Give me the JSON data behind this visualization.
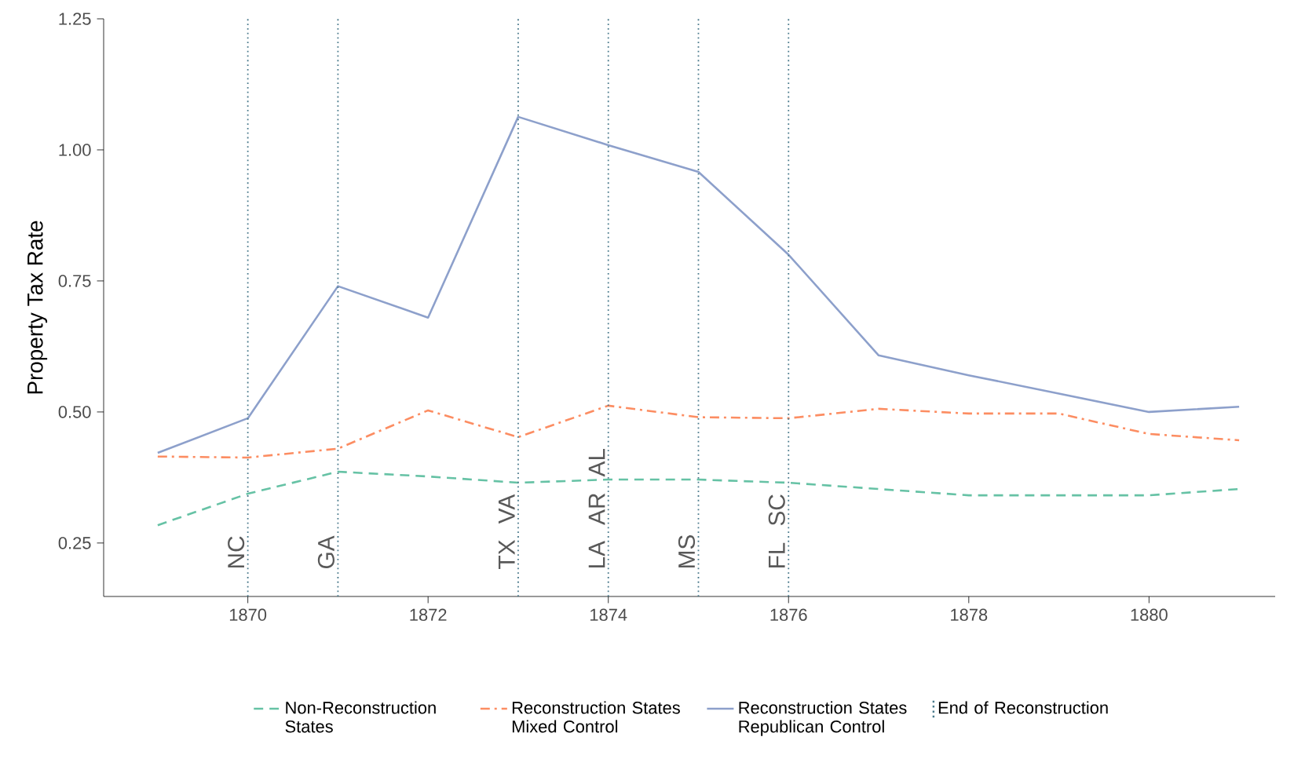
{
  "chart_data": {
    "type": "line",
    "ylabel": "Property Tax Rate",
    "x": [
      1869,
      1870,
      1871,
      1872,
      1873,
      1874,
      1875,
      1876,
      1877,
      1878,
      1879,
      1880,
      1881
    ],
    "series": [
      {
        "name": "Non-Reconstruction States",
        "color": "#66c2a5",
        "line_style": "dashed",
        "values": [
          0.284,
          0.344,
          0.386,
          0.377,
          0.365,
          0.371,
          0.371,
          0.365,
          0.353,
          0.341,
          0.341,
          0.341,
          0.353
        ]
      },
      {
        "name": "Reconstruction States Mixed Control",
        "color": "#fc8d62",
        "line_style": "dashdot",
        "values": [
          0.415,
          0.413,
          0.43,
          0.503,
          0.452,
          0.512,
          0.49,
          0.488,
          0.506,
          0.497,
          0.497,
          0.458,
          0.446
        ]
      },
      {
        "name": "Reconstruction States Republican Control",
        "color": "#8da0cb",
        "line_style": "solid",
        "values": [
          0.422,
          0.488,
          0.74,
          0.68,
          1.063,
          1.009,
          0.958,
          0.8,
          0.608,
          0.57,
          0.535,
          0.5,
          0.51
        ]
      }
    ],
    "xlim": [
      1868.4,
      1881.4
    ],
    "ylim": [
      0.148,
      1.25
    ],
    "xticks": [
      1870,
      1872,
      1874,
      1876,
      1878,
      1880
    ],
    "yticks": [
      0.25,
      {
        "value": 0.5,
        "label": "0.50"
      },
      0.75,
      {
        "value": 1.0,
        "label": "1.00"
      },
      1.25
    ],
    "ref_lines": [
      {
        "axis": "x",
        "value": 1870,
        "label": "NC",
        "color": "#4a7a8c",
        "line_style": "dotted"
      },
      {
        "axis": "x",
        "value": 1871,
        "label": "GA",
        "color": "#4a7a8c",
        "line_style": "dotted"
      },
      {
        "axis": "x",
        "value": 1873,
        "label": "TX VA",
        "color": "#4a7a8c",
        "line_style": "dotted"
      },
      {
        "axis": "x",
        "value": 1874,
        "label": "LA AR AL",
        "color": "#4a7a8c",
        "line_style": "dotted"
      },
      {
        "axis": "x",
        "value": 1875,
        "label": "MS",
        "color": "#4a7a8c",
        "line_style": "dotted"
      },
      {
        "axis": "x",
        "value": 1876,
        "label": "FL SC",
        "color": "#4a7a8c",
        "line_style": "dotted"
      }
    ],
    "annotations": [
      "End of Reconstruction"
    ],
    "grid": false,
    "legend": "bottom",
    "marker": "none"
  }
}
